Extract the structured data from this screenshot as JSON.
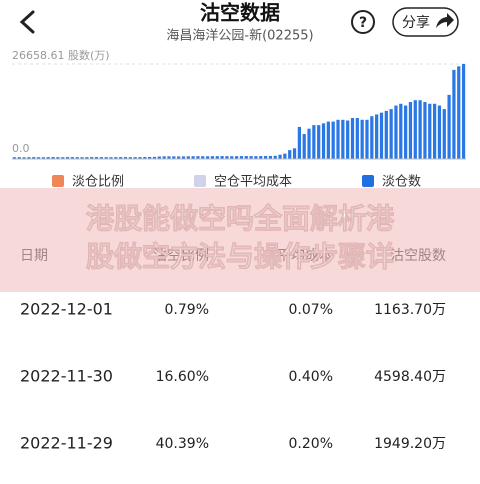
{
  "header": {
    "title": "沽空数据",
    "subtitle": "海昌海洋公园-新(02255)",
    "help": "?",
    "share": "分享"
  },
  "chart_data": {
    "type": "bar",
    "color": "#2a78e6",
    "ylim": [
      0,
      26658.61
    ],
    "yticks": [
      {
        "value": 0,
        "label": "0.0"
      },
      {
        "value": 26658.61,
        "label": "26658.61 股数(万)"
      }
    ],
    "values": [
      500,
      520,
      480,
      510,
      530,
      500,
      490,
      520,
      540,
      510,
      500,
      530,
      520,
      510,
      500,
      520,
      530,
      540,
      520,
      510,
      500,
      520,
      540,
      530,
      510,
      520,
      540,
      560,
      580,
      600,
      700,
      750,
      760,
      740,
      720,
      730,
      760,
      780,
      800,
      780,
      760,
      790,
      800,
      820,
      800,
      780,
      800,
      820,
      830,
      810,
      800,
      820,
      840,
      860,
      900,
      1200,
      1500,
      2500,
      3000,
      9000,
      7000,
      8500,
      9500,
      9500,
      10000,
      10500,
      10500,
      11000,
      11000,
      10800,
      11500,
      11500,
      11000,
      11000,
      12000,
      12500,
      13000,
      13500,
      14000,
      15000,
      15500,
      15000,
      16000,
      16500,
      16500,
      16000,
      15500,
      15500,
      15000,
      14000,
      18000,
      25000,
      26000,
      26658.61
    ],
    "legend": [
      {
        "name": "淡仓比例",
        "color": "#f08657"
      },
      {
        "name": "空仓平均成本",
        "color": "#cfd2e8"
      },
      {
        "name": "淡仓数",
        "color": "#1f6fe0"
      }
    ]
  },
  "banner": {
    "lines": [
      "港股能做空吗全面解析港",
      "股做空方法与操作步骤详"
    ]
  },
  "table": {
    "columns": [
      "日期",
      "沽空比例",
      "平均成本",
      "沽空股数"
    ],
    "rows": [
      [
        "2022-12-01",
        "0.79%",
        "0.07%",
        "1163.70万"
      ],
      [
        "2022-11-30",
        "16.60%",
        "0.40%",
        "4598.40万"
      ],
      [
        "2022-11-29",
        "40.39%",
        "0.20%",
        "1949.20万"
      ]
    ]
  }
}
